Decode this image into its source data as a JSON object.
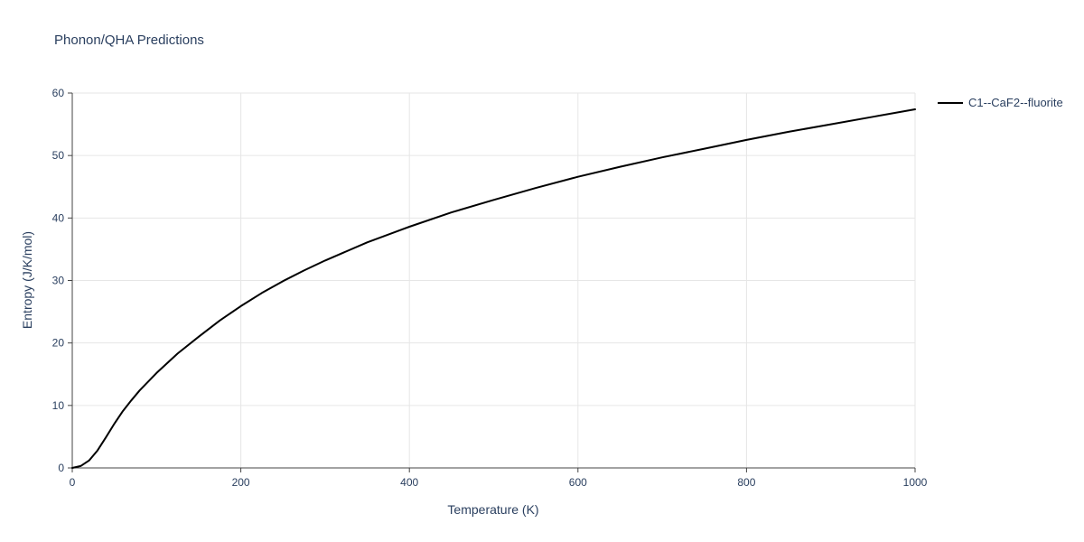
{
  "chart_data": {
    "type": "line",
    "title": "Phonon/QHA Predictions",
    "xlabel": "Temperature (K)",
    "ylabel": "Entropy (J/K/mol)",
    "xlim": [
      0,
      1000
    ],
    "ylim": [
      0,
      60
    ],
    "xticks": [
      0,
      200,
      400,
      600,
      800,
      1000
    ],
    "yticks": [
      0,
      10,
      20,
      30,
      40,
      50,
      60
    ],
    "grid": true,
    "legend_position": "top-right",
    "series": [
      {
        "name": "C1--CaF2--fluorite",
        "color": "#000000",
        "x": [
          0,
          10,
          20,
          30,
          40,
          50,
          60,
          70,
          80,
          100,
          125,
          150,
          175,
          200,
          225,
          250,
          275,
          300,
          350,
          400,
          450,
          500,
          550,
          600,
          650,
          700,
          750,
          800,
          850,
          900,
          950,
          1000
        ],
        "y": [
          0,
          0.3,
          1.2,
          2.8,
          4.9,
          7.1,
          9.1,
          10.8,
          12.4,
          15.2,
          18.3,
          21.0,
          23.6,
          25.9,
          28.0,
          29.9,
          31.6,
          33.2,
          36.1,
          38.6,
          40.9,
          42.9,
          44.8,
          46.6,
          48.2,
          49.7,
          51.1,
          52.5,
          53.8,
          55.0,
          56.2,
          57.4
        ]
      }
    ],
    "colors": {
      "grid": "#e6e6e6",
      "axis": "#444444",
      "text": "#2a3f5f",
      "line": "#000000"
    }
  }
}
